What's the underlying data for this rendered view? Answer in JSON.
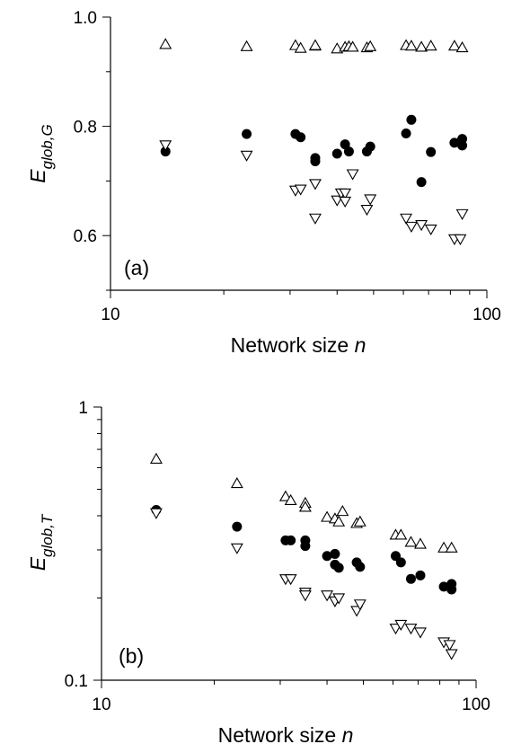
{
  "chart_data": [
    {
      "type": "scatter",
      "panel_label": "(a)",
      "xlabel_main": "Network size ",
      "xlabel_var": "n",
      "ylabel_main": "E",
      "ylabel_sub": "glob,G",
      "x_scale": "log",
      "y_scale": "linear",
      "xlim": [
        10,
        100
      ],
      "ylim": [
        0.5,
        1.0
      ],
      "x_tick_labels": [
        {
          "value": 10,
          "label": "10"
        },
        {
          "value": 100,
          "label": "100"
        }
      ],
      "y_tick_labels": [
        {
          "value": 0.6,
          "label": "0.6"
        },
        {
          "value": 0.8,
          "label": "0.8"
        },
        {
          "value": 1.0,
          "label": "1.0"
        }
      ],
      "grid": false,
      "legend": "none",
      "series": [
        {
          "marker": "triangle-up-open",
          "points": [
            [
              14,
              0.95
            ],
            [
              23,
              0.946
            ],
            [
              31,
              0.948
            ],
            [
              32,
              0.943
            ],
            [
              35,
              0.947
            ],
            [
              35,
              0.948
            ],
            [
              40,
              0.942
            ],
            [
              42,
              0.945
            ],
            [
              43,
              0.946
            ],
            [
              44,
              0.945
            ],
            [
              48,
              0.944
            ],
            [
              49,
              0.946
            ],
            [
              61,
              0.948
            ],
            [
              63,
              0.947
            ],
            [
              67,
              0.945
            ],
            [
              71,
              0.947
            ],
            [
              82,
              0.947
            ],
            [
              86,
              0.944
            ]
          ]
        },
        {
          "marker": "circle-filled",
          "points": [
            [
              14,
              0.754
            ],
            [
              23,
              0.786
            ],
            [
              31,
              0.786
            ],
            [
              32,
              0.78
            ],
            [
              35,
              0.736
            ],
            [
              35,
              0.742
            ],
            [
              40,
              0.75
            ],
            [
              42,
              0.767
            ],
            [
              43,
              0.754
            ],
            [
              48,
              0.754
            ],
            [
              49,
              0.763
            ],
            [
              61,
              0.787
            ],
            [
              63,
              0.812
            ],
            [
              67,
              0.698
            ],
            [
              71,
              0.753
            ],
            [
              82,
              0.77
            ],
            [
              86,
              0.777
            ],
            [
              86,
              0.765
            ]
          ]
        },
        {
          "marker": "triangle-down-open",
          "points": [
            [
              14,
              0.766
            ],
            [
              23,
              0.747
            ],
            [
              31,
              0.683
            ],
            [
              32,
              0.685
            ],
            [
              35,
              0.695
            ],
            [
              35,
              0.632
            ],
            [
              40,
              0.665
            ],
            [
              41,
              0.678
            ],
            [
              42,
              0.678
            ],
            [
              42,
              0.663
            ],
            [
              44,
              0.713
            ],
            [
              48,
              0.648
            ],
            [
              49,
              0.667
            ],
            [
              61,
              0.632
            ],
            [
              63,
              0.617
            ],
            [
              67,
              0.62
            ],
            [
              71,
              0.612
            ],
            [
              82,
              0.594
            ],
            [
              85,
              0.594
            ],
            [
              86,
              0.64
            ]
          ]
        }
      ]
    },
    {
      "type": "scatter",
      "panel_label": "(b)",
      "xlabel_main": "Network size ",
      "xlabel_var": "n",
      "ylabel_main": "E",
      "ylabel_sub": "glob,T",
      "x_scale": "log",
      "y_scale": "log",
      "xlim": [
        10,
        100
      ],
      "ylim": [
        0.1,
        1.0
      ],
      "x_tick_labels": [
        {
          "value": 10,
          "label": "10"
        },
        {
          "value": 100,
          "label": "100"
        }
      ],
      "y_tick_labels": [
        {
          "value": 0.1,
          "label": "0.1"
        },
        {
          "value": 1.0,
          "label": "1"
        }
      ],
      "grid": false,
      "legend": "none",
      "series": [
        {
          "marker": "triangle-up-open",
          "points": [
            [
              14,
              0.645
            ],
            [
              23,
              0.525
            ],
            [
              31,
              0.47
            ],
            [
              32,
              0.455
            ],
            [
              35,
              0.445
            ],
            [
              35,
              0.43
            ],
            [
              40,
              0.395
            ],
            [
              42,
              0.39
            ],
            [
              43,
              0.38
            ],
            [
              44,
              0.415
            ],
            [
              48,
              0.375
            ],
            [
              49,
              0.38
            ],
            [
              61,
              0.34
            ],
            [
              63,
              0.34
            ],
            [
              67,
              0.32
            ],
            [
              71,
              0.315
            ],
            [
              82,
              0.305
            ],
            [
              86,
              0.305
            ]
          ]
        },
        {
          "marker": "circle-filled",
          "points": [
            [
              14,
              0.42
            ],
            [
              23,
              0.365
            ],
            [
              31,
              0.325
            ],
            [
              32,
              0.325
            ],
            [
              35,
              0.325
            ],
            [
              35,
              0.31
            ],
            [
              40,
              0.285
            ],
            [
              42,
              0.29
            ],
            [
              42,
              0.265
            ],
            [
              43,
              0.258
            ],
            [
              48,
              0.27
            ],
            [
              49,
              0.26
            ],
            [
              61,
              0.285
            ],
            [
              63,
              0.27
            ],
            [
              67,
              0.235
            ],
            [
              71,
              0.242
            ],
            [
              82,
              0.22
            ],
            [
              86,
              0.225
            ],
            [
              86,
              0.215
            ]
          ]
        },
        {
          "marker": "triangle-down-open",
          "points": [
            [
              14,
              0.41
            ],
            [
              23,
              0.305
            ],
            [
              31,
              0.235
            ],
            [
              32,
              0.235
            ],
            [
              35,
              0.21
            ],
            [
              35,
              0.205
            ],
            [
              40,
              0.205
            ],
            [
              42,
              0.195
            ],
            [
              43,
              0.2
            ],
            [
              48,
              0.18
            ],
            [
              49,
              0.19
            ],
            [
              61,
              0.155
            ],
            [
              63,
              0.16
            ],
            [
              67,
              0.155
            ],
            [
              71,
              0.15
            ],
            [
              82,
              0.138
            ],
            [
              85,
              0.135
            ],
            [
              86,
              0.125
            ]
          ]
        }
      ]
    }
  ]
}
